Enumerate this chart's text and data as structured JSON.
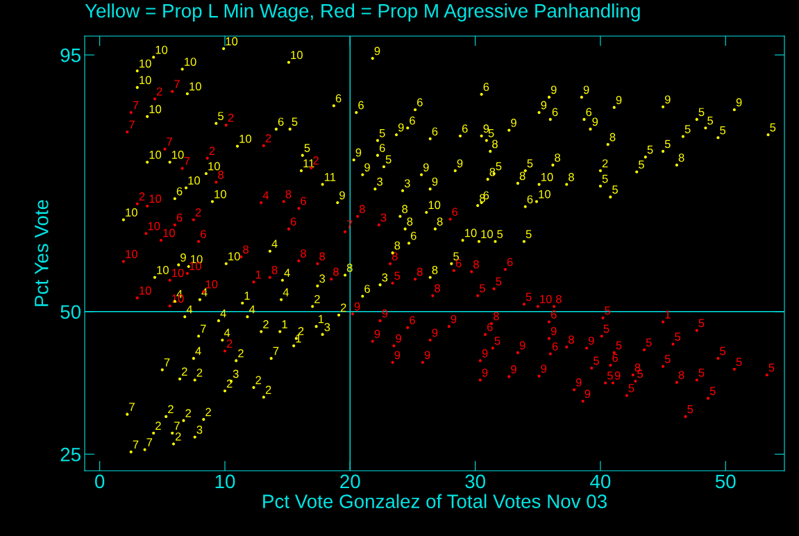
{
  "chart_data": {
    "type": "scatter",
    "title": "Yellow = Prop L Min Wage, Red = Prop M Agressive Panhandling",
    "xlabel": "Pct Vote Gonzalez of Total Votes Nov 03",
    "ylabel": "Pct Yes Vote",
    "xlim": [
      -1.2,
      54.7
    ],
    "ylim": [
      22.1,
      98.3
    ],
    "xticks": [
      0,
      10,
      20,
      30,
      40,
      50
    ],
    "yticks": [
      25,
      50,
      95
    ],
    "grid": false,
    "legend": false,
    "marker": "circle",
    "ref_lines": [
      {
        "axis": "y",
        "value": 50,
        "color": "#00e5e5"
      },
      {
        "axis": "x",
        "value": 20,
        "color": "#00e5e5"
      }
    ],
    "series": [
      {
        "name": "10",
        "color": "#ffff00",
        "x": [
          4.3,
          9.9,
          3.0,
          6.6,
          15.1,
          3.0,
          7.0,
          3.8,
          11.0,
          3.8,
          5.6,
          8.5,
          6.9,
          1.9,
          9.0,
          26.1,
          29.0,
          34.9,
          35.1,
          4.4,
          7.1,
          10.1,
          30.3
        ],
        "values": [
          94.6,
          96.1,
          92.2,
          92.5,
          93.7,
          89.3,
          88.2,
          84.2,
          79.0,
          76.2,
          76.2,
          74.2,
          71.7,
          66.1,
          69.3,
          67.4,
          62.5,
          69.3,
          72.3,
          56.0,
          57.9,
          58.4,
          62.3
        ]
      },
      {
        "name": "9",
        "color": "#ffff00",
        "x": [
          21.8,
          19.0,
          20.3,
          21.0,
          23.7,
          25.7,
          26.4,
          28.4,
          30.5,
          32.7,
          35.9,
          35.1,
          38.5,
          39.2,
          41.1,
          45.0,
          50.7,
          6.3
        ],
        "values": [
          94.4,
          69.1,
          76.6,
          74.0,
          81.0,
          74.0,
          71.5,
          74.7,
          80.8,
          81.8,
          87.6,
          84.9,
          87.6,
          82.0,
          85.8,
          85.9,
          85.4,
          58.2
        ]
      },
      {
        "name": "5",
        "color": "#ffff00",
        "x": [
          9.3,
          15.2,
          16.2,
          22.2,
          22.7,
          30.9,
          31.5,
          31.6,
          33.9,
          34.0,
          40.0,
          40.8,
          45.0,
          47.7,
          48.4,
          49.4,
          53.4,
          46.6,
          42.9,
          43.6,
          28.1
        ],
        "values": [
          83.0,
          82.0,
          77.4,
          80.0,
          75.4,
          80.0,
          74.2,
          62.3,
          62.3,
          74.7,
          72.0,
          70.1,
          78.1,
          83.7,
          82.2,
          80.5,
          81.0,
          80.7,
          74.5,
          77.1,
          58.4
        ]
      },
      {
        "name": "6",
        "color": "#ffff00",
        "x": [
          14.1,
          6.0,
          18.7,
          20.5,
          22.2,
          24.6,
          25.2,
          26.4,
          28.8,
          30.5,
          30.5,
          34.0,
          36.0,
          38.7,
          21.0,
          24.7
        ],
        "values": [
          82.0,
          69.8,
          86.1,
          84.9,
          77.4,
          82.2,
          85.4,
          80.3,
          80.8,
          88.1,
          69.1,
          68.4,
          83.7,
          83.7,
          52.7,
          62.0
        ]
      },
      {
        "name": "11",
        "color": "#ffff00",
        "x": [
          16.1,
          17.8
        ],
        "values": [
          74.7,
          72.3
        ]
      },
      {
        "name": "3",
        "color": "#ffff00",
        "x": [
          22.0,
          24.2,
          7.6,
          10.5,
          17.8,
          17.4,
          22.4
        ],
        "values": [
          71.5,
          71.2,
          28.0,
          37.8,
          46.0,
          54.5,
          54.7
        ]
      },
      {
        "name": "8",
        "color": "#ffff00",
        "x": [
          24.0,
          31.2,
          31.0,
          30.2,
          33.4,
          36.2,
          40.6,
          37.3,
          46.1,
          19.6,
          23.4,
          24.4,
          26.8,
          26.4
        ],
        "values": [
          66.7,
          78.1,
          73.2,
          68.6,
          72.5,
          75.7,
          79.3,
          72.3,
          75.7,
          56.4,
          60.3,
          64.5,
          64.5,
          56.0
        ]
      },
      {
        "name": "2",
        "color": "#ffff00",
        "x": [
          40.0,
          4.3,
          5.3,
          5.9,
          6.7,
          8.3,
          6.4,
          7.6,
          10.0,
          10.9,
          12.3,
          13.1,
          12.9,
          15.7,
          17.0,
          19.1
        ],
        "values": [
          74.7,
          28.7,
          31.6,
          26.8,
          30.9,
          31.1,
          38.2,
          38.0,
          36.1,
          41.4,
          36.7,
          35.0,
          46.5,
          45.3,
          50.9,
          49.4
        ]
      },
      {
        "name": "7",
        "color": "#ffff00",
        "x": [
          2.2,
          2.5,
          3.6,
          5.8,
          5.0,
          7.9,
          13.7
        ],
        "values": [
          32.0,
          25.4,
          25.8,
          28.7,
          39.8,
          45.7,
          41.8
        ]
      },
      {
        "name": "4",
        "color": "#ffff00",
        "x": [
          7.5,
          6.8,
          6.0,
          8.0,
          9.8,
          9.5,
          14.6,
          14.5,
          11.8,
          13.6
        ],
        "values": [
          41.8,
          49.1,
          51.8,
          52.1,
          45.0,
          48.4,
          55.5,
          52.1,
          49.1,
          60.6
        ]
      },
      {
        "name": "1",
        "color": "#ffff00",
        "x": [
          14.4,
          15.5,
          17.3,
          11.4
        ],
        "values": [
          46.5,
          44.0,
          47.4,
          51.5
        ]
      },
      {
        "name": "7",
        "color": "#ff0000",
        "x": [
          2.2,
          2.5,
          5.8,
          5.2,
          6.6,
          19.6
        ],
        "values": [
          81.5,
          84.9,
          88.6,
          78.5,
          75.1,
          64.0
        ]
      },
      {
        "name": "2",
        "color": "#ff0000",
        "x": [
          4.4,
          8.6,
          10.1,
          13.1,
          16.9,
          3.0,
          10.0,
          7.5
        ],
        "values": [
          87.3,
          76.9,
          82.7,
          79.1,
          75.2,
          68.9,
          43.1,
          66.1
        ]
      },
      {
        "name": "10",
        "color": "#ff0000",
        "x": [
          3.8,
          3.7,
          4.9,
          1.9,
          5.6,
          3.0,
          5.6,
          8.3,
          7.0,
          35.0
        ],
        "values": [
          68.5,
          63.7,
          62.5,
          58.8,
          55.5,
          52.4,
          51.0,
          53.5,
          56.7,
          50.9
        ]
      },
      {
        "name": "6",
        "color": "#ff0000",
        "x": [
          6.0,
          15.9,
          28.0,
          28.3,
          32.4,
          24.6,
          30.8,
          35.9,
          36.0,
          40.8,
          15.1,
          7.9
        ],
        "values": [
          65.2,
          68.1,
          66.2,
          57.2,
          57.4,
          47.2,
          46.0,
          48.2,
          42.6,
          40.6,
          64.5,
          62.3
        ]
      },
      {
        "name": "8",
        "color": "#ff0000",
        "x": [
          9.3,
          14.7,
          20.6,
          29.7,
          36.3,
          31.3,
          37.3,
          42.6,
          46.1,
          15.9,
          17.4,
          11.3,
          18.5,
          23.2,
          25.2,
          26.6,
          13.6
        ],
        "values": [
          72.7,
          69.3,
          66.7,
          57.0,
          50.9,
          47.9,
          43.8,
          38.9,
          37.6,
          58.9,
          58.4,
          59.6,
          55.7,
          58.4,
          55.7,
          52.8,
          56.0
        ]
      },
      {
        "name": "4",
        "color": "#ff0000",
        "x": [
          12.9
        ],
        "values": [
          69.1
        ]
      },
      {
        "name": "3",
        "color": "#ff0000",
        "x": [
          22.3
        ],
        "values": [
          65.2
        ]
      },
      {
        "name": "5",
        "color": "#ff0000",
        "x": [
          31.5,
          30.2,
          33.9,
          31.4,
          39.3,
          40.4,
          42.1,
          40.2,
          40.1,
          41.1,
          43.5,
          42.8,
          45.0,
          45.8,
          47.7,
          46.8,
          47.7,
          48.6,
          49.4,
          50.7,
          53.3,
          23.4
        ],
        "values": [
          54.0,
          52.8,
          51.3,
          43.6,
          40.1,
          37.5,
          35.3,
          48.9,
          45.7,
          42.8,
          43.3,
          37.8,
          40.4,
          44.3,
          46.7,
          31.6,
          38.0,
          34.8,
          41.8,
          39.9,
          38.9,
          55.0
        ]
      },
      {
        "name": "9",
        "color": "#ff0000",
        "x": [
          20.2,
          22.4,
          21.8,
          23.5,
          23.4,
          25.8,
          26.4,
          27.9,
          30.4,
          30.4,
          32.7,
          35.1,
          33.4,
          35.9,
          38.9,
          37.9,
          38.6,
          41.0
        ],
        "values": [
          49.6,
          48.4,
          44.8,
          44.0,
          41.1,
          41.1,
          45.0,
          47.4,
          41.4,
          38.0,
          38.6,
          38.7,
          42.8,
          45.3,
          43.6,
          36.3,
          34.3,
          37.5
        ]
      },
      {
        "name": "1",
        "color": "#ff0000",
        "x": [
          45.0,
          12.3
        ],
        "values": [
          48.2,
          55.2
        ]
      }
    ]
  }
}
